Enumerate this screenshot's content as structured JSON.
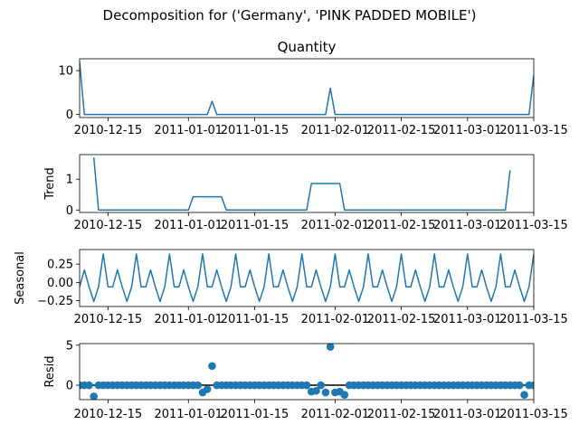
{
  "figure": {
    "suptitle": "Decomposition for ('Germany', 'PINK PADDED MOBILE')",
    "line_color": "#1f77b4"
  },
  "chart_data": [
    {
      "type": "line",
      "title": "Quantity",
      "ylabel": "",
      "x_start": "2010-12-09",
      "x_end": "2011-03-15",
      "x_step_days": 1,
      "xlim": [
        "2010-12-09",
        "2011-03-15"
      ],
      "ylim": [
        -0.7,
        12.7
      ],
      "yticks": [
        {
          "v": 0,
          "label": "0"
        },
        {
          "v": 10,
          "label": "10"
        }
      ],
      "segments": [
        {
          "from": "2010-12-09",
          "to": "2010-12-09",
          "value": 12
        },
        {
          "from": "2010-12-10",
          "to": "2011-01-05",
          "value": 0
        },
        {
          "from": "2011-01-06",
          "to": "2011-01-06",
          "value": 3
        },
        {
          "from": "2011-01-07",
          "to": "2011-01-30",
          "value": 0
        },
        {
          "from": "2011-01-31",
          "to": "2011-01-31",
          "value": 6
        },
        {
          "from": "2011-02-01",
          "to": "2011-03-14",
          "value": 0
        },
        {
          "from": "2011-03-15",
          "to": "2011-03-15",
          "value": 9
        }
      ]
    },
    {
      "type": "line",
      "title": "",
      "ylabel": "Trend",
      "x_start": "2010-12-09",
      "x_end": "2011-03-15",
      "x_step_days": 1,
      "xlim": [
        "2010-12-09",
        "2011-03-15"
      ],
      "ylim": [
        -0.08,
        1.8
      ],
      "yticks": [
        {
          "v": 0,
          "label": "0"
        },
        {
          "v": 1,
          "label": "1"
        }
      ],
      "segments": [
        {
          "from": "2010-12-12",
          "to": "2010-12-12",
          "value": 1.71
        },
        {
          "from": "2010-12-13",
          "to": "2011-01-01",
          "value": 0
        },
        {
          "from": "2011-01-02",
          "to": "2011-01-08",
          "value": 0.43
        },
        {
          "from": "2011-01-09",
          "to": "2011-01-26",
          "value": 0
        },
        {
          "from": "2011-01-27",
          "to": "2011-02-02",
          "value": 0.86
        },
        {
          "from": "2011-02-03",
          "to": "2011-03-09",
          "value": 0
        },
        {
          "from": "2011-03-10",
          "to": "2011-03-10",
          "value": 1.29
        }
      ]
    },
    {
      "type": "line",
      "title": "",
      "ylabel": "Seasonal",
      "x_start": "2010-12-09",
      "x_end": "2011-03-15",
      "x_step_days": 1,
      "xlim": [
        "2010-12-09",
        "2011-03-15"
      ],
      "ylim": [
        -0.33,
        0.45
      ],
      "yticks": [
        {
          "v": 0.25,
          "label": "0.25"
        },
        {
          "v": 0.0,
          "label": "0.00"
        },
        {
          "v": -0.25,
          "label": "−0.25"
        }
      ],
      "period_days": 7,
      "seasonal_pattern": [
        -0.06,
        0.17,
        -0.06,
        -0.26,
        -0.06,
        0.39,
        -0.06
      ]
    },
    {
      "type": "scatter",
      "title": "",
      "ylabel": "Resid",
      "x_start": "2010-12-09",
      "x_end": "2011-03-15",
      "x_step_days": 1,
      "xlim": [
        "2010-12-09",
        "2011-03-15"
      ],
      "ylim": [
        -1.8,
        5.2
      ],
      "yticks": [
        {
          "v": 5,
          "label": "5"
        },
        {
          "v": 0,
          "label": "0"
        }
      ],
      "hline": 0,
      "default_value": 0,
      "outliers": [
        {
          "date": "2010-12-12",
          "value": -1.4
        },
        {
          "date": "2011-01-04",
          "value": -0.9
        },
        {
          "date": "2011-01-05",
          "value": -0.5
        },
        {
          "date": "2011-01-06",
          "value": 2.4
        },
        {
          "date": "2011-01-27",
          "value": -0.8
        },
        {
          "date": "2011-01-28",
          "value": -0.7
        },
        {
          "date": "2011-01-30",
          "value": -0.9
        },
        {
          "date": "2011-01-31",
          "value": 4.8
        },
        {
          "date": "2011-02-01",
          "value": -0.9
        },
        {
          "date": "2011-02-02",
          "value": -0.8
        },
        {
          "date": "2011-02-03",
          "value": -1.2
        },
        {
          "date": "2011-03-13",
          "value": -1.2
        }
      ]
    }
  ],
  "xticks": [
    {
      "date": "2010-12-15",
      "label": "2010-12-15"
    },
    {
      "date": "2011-01-01",
      "label": "2011-01-01"
    },
    {
      "date": "2011-01-15",
      "label": "2011-01-15"
    },
    {
      "date": "2011-02-01",
      "label": "2011-02-01"
    },
    {
      "date": "2011-02-15",
      "label": "2011-02-15"
    },
    {
      "date": "2011-03-01",
      "label": "2011-03-01"
    },
    {
      "date": "2011-03-15",
      "label": "2011-03-15"
    }
  ]
}
